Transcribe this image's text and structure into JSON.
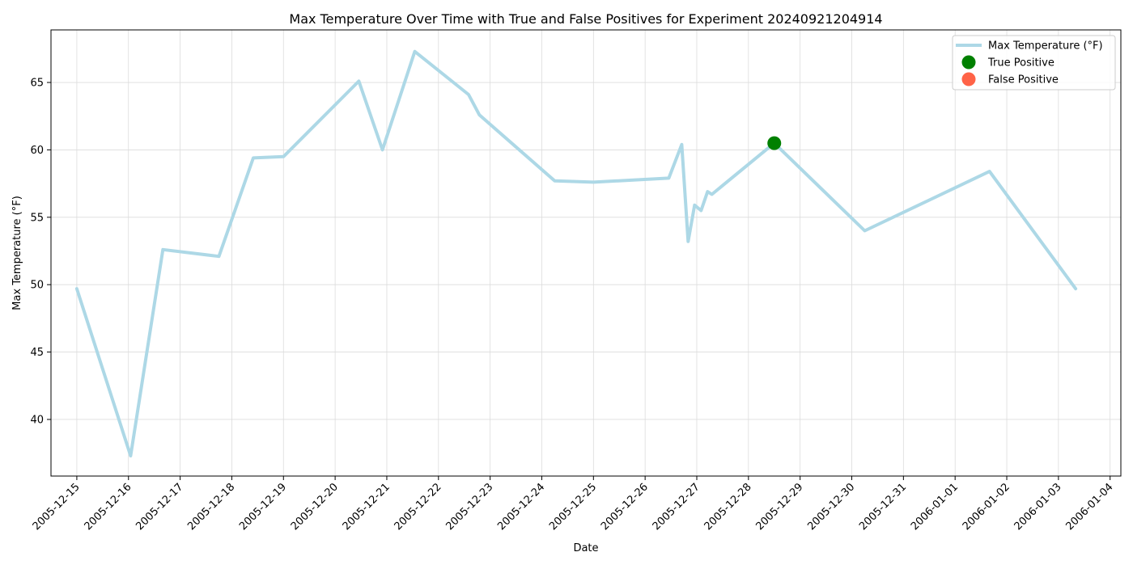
{
  "chart_data": {
    "type": "line",
    "title": "Max Temperature Over Time with True and False Positives for Experiment 20240921204914",
    "xlabel": "Date",
    "ylabel": "Max Temperature (°F)",
    "xlim": [
      "2005-12-14T12:00",
      "2006-01-04T05:00"
    ],
    "ylim": [
      35.8,
      68.9
    ],
    "x_ticks": [
      "2005-12-15",
      "2005-12-16",
      "2005-12-17",
      "2005-12-18",
      "2005-12-19",
      "2005-12-20",
      "2005-12-21",
      "2005-12-22",
      "2005-12-23",
      "2005-12-24",
      "2005-12-25",
      "2005-12-26",
      "2005-12-27",
      "2005-12-28",
      "2005-12-29",
      "2005-12-30",
      "2005-12-31",
      "2006-01-01",
      "2006-01-02",
      "2006-01-03",
      "2006-01-04"
    ],
    "y_ticks": [
      40,
      45,
      50,
      55,
      60,
      65
    ],
    "grid": true,
    "legend_position": "top-right",
    "series": [
      {
        "name": "Max Temperature (°F)",
        "kind": "line",
        "color": "#add8e6",
        "points": [
          {
            "x": "2005-12-15T00:00",
            "y": 49.7
          },
          {
            "x": "2005-12-16T01:00",
            "y": 37.3
          },
          {
            "x": "2005-12-16T16:00",
            "y": 52.6
          },
          {
            "x": "2005-12-17T18:00",
            "y": 52.1
          },
          {
            "x": "2005-12-18T10:00",
            "y": 59.4
          },
          {
            "x": "2005-12-19T00:00",
            "y": 59.5
          },
          {
            "x": "2005-12-20T11:00",
            "y": 65.1
          },
          {
            "x": "2005-12-20T22:00",
            "y": 60.0
          },
          {
            "x": "2005-12-21T13:00",
            "y": 67.3
          },
          {
            "x": "2005-12-22T14:00",
            "y": 64.1
          },
          {
            "x": "2005-12-22T19:00",
            "y": 62.6
          },
          {
            "x": "2005-12-24T06:00",
            "y": 57.7
          },
          {
            "x": "2005-12-25T00:00",
            "y": 57.6
          },
          {
            "x": "2005-12-26T11:00",
            "y": 57.9
          },
          {
            "x": "2005-12-26T17:00",
            "y": 60.4
          },
          {
            "x": "2005-12-26T20:00",
            "y": 53.2
          },
          {
            "x": "2005-12-26T23:00",
            "y": 55.9
          },
          {
            "x": "2005-12-27T02:00",
            "y": 55.5
          },
          {
            "x": "2005-12-27T05:00",
            "y": 56.9
          },
          {
            "x": "2005-12-27T07:00",
            "y": 56.7
          },
          {
            "x": "2005-12-28T12:00",
            "y": 60.5
          },
          {
            "x": "2005-12-30T06:00",
            "y": 54.0
          },
          {
            "x": "2006-01-01T16:00",
            "y": 58.4
          },
          {
            "x": "2006-01-03T08:00",
            "y": 49.7
          }
        ]
      },
      {
        "name": "True Positive",
        "kind": "scatter",
        "color": "#008000",
        "points": [
          {
            "x": "2005-12-28T12:00",
            "y": 60.5
          }
        ]
      },
      {
        "name": "False Positive",
        "kind": "scatter",
        "color": "#ff6347",
        "points": []
      }
    ]
  }
}
